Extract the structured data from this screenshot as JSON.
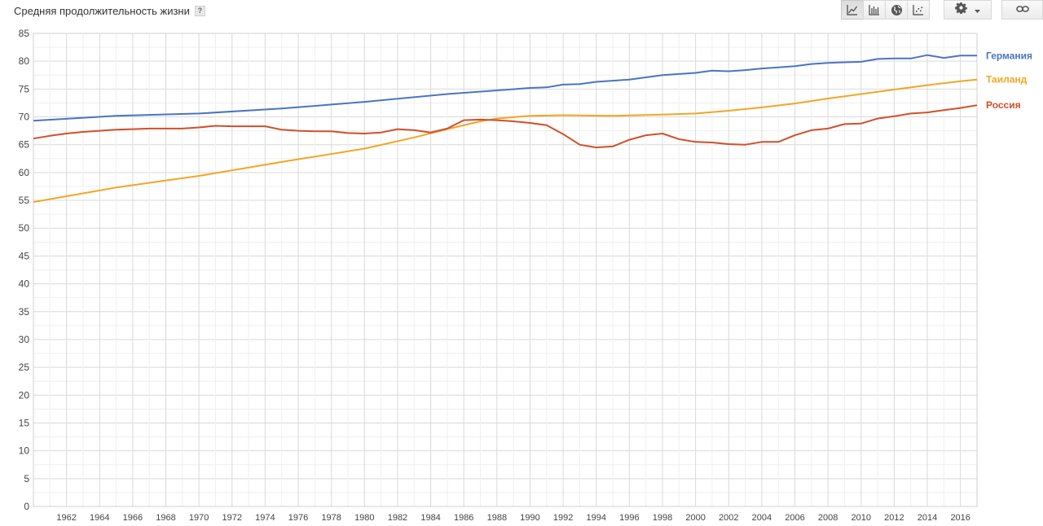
{
  "header": {
    "title": "Средняя продолжительность жизни",
    "help_label": "?"
  },
  "toolbar": {
    "buttons": [
      {
        "icon": "line-chart-icon",
        "active": true
      },
      {
        "icon": "bar-chart-icon",
        "active": false
      },
      {
        "icon": "globe-map-icon",
        "active": false
      },
      {
        "icon": "scatter-chart-icon",
        "active": false
      }
    ],
    "settings_icon": "gear-icon",
    "dropdown_icon": "caret-down-icon",
    "link_icon": "link-icon"
  },
  "chart_data": {
    "type": "line",
    "title": "Средняя продолжительность жизни",
    "xlabel": "",
    "ylabel": "",
    "xlim": [
      1960,
      2017
    ],
    "ylim": [
      0,
      85
    ],
    "y_ticks": [
      0,
      5,
      10,
      15,
      20,
      25,
      30,
      35,
      40,
      45,
      50,
      55,
      60,
      65,
      70,
      75,
      80,
      85
    ],
    "x_ticks": [
      1962,
      1964,
      1966,
      1968,
      1970,
      1972,
      1974,
      1976,
      1978,
      1980,
      1982,
      1984,
      1986,
      1988,
      1990,
      1992,
      1994,
      1996,
      1998,
      2000,
      2002,
      2004,
      2006,
      2008,
      2010,
      2012,
      2014,
      2016
    ],
    "grid": true,
    "legend_placement": "right, at line ends",
    "series": [
      {
        "name": "Германия",
        "color": "#4a74c4",
        "points": [
          [
            1960,
            69.3
          ],
          [
            1965,
            70.2
          ],
          [
            1970,
            70.6
          ],
          [
            1975,
            71.5
          ],
          [
            1980,
            72.7
          ],
          [
            1985,
            74.1
          ],
          [
            1990,
            75.2
          ],
          [
            1991,
            75.3
          ],
          [
            1992,
            75.8
          ],
          [
            1993,
            75.9
          ],
          [
            1994,
            76.3
          ],
          [
            1995,
            76.5
          ],
          [
            1996,
            76.7
          ],
          [
            1997,
            77.1
          ],
          [
            1998,
            77.5
          ],
          [
            1999,
            77.7
          ],
          [
            2000,
            77.9
          ],
          [
            2001,
            78.3
          ],
          [
            2002,
            78.2
          ],
          [
            2003,
            78.4
          ],
          [
            2004,
            78.7
          ],
          [
            2005,
            78.9
          ],
          [
            2006,
            79.1
          ],
          [
            2007,
            79.5
          ],
          [
            2008,
            79.7
          ],
          [
            2009,
            79.8
          ],
          [
            2010,
            79.9
          ],
          [
            2011,
            80.4
          ],
          [
            2012,
            80.5
          ],
          [
            2013,
            80.5
          ],
          [
            2014,
            81.1
          ],
          [
            2015,
            80.6
          ],
          [
            2016,
            81.0
          ],
          [
            2017,
            81.0
          ]
        ]
      },
      {
        "name": "Таиланд",
        "color": "#f2a623",
        "points": [
          [
            1960,
            54.7
          ],
          [
            1965,
            57.3
          ],
          [
            1970,
            59.4
          ],
          [
            1975,
            61.9
          ],
          [
            1980,
            64.3
          ],
          [
            1983,
            66.3
          ],
          [
            1985,
            67.8
          ],
          [
            1987,
            69.2
          ],
          [
            1988,
            69.7
          ],
          [
            1990,
            70.2
          ],
          [
            1992,
            70.3
          ],
          [
            1995,
            70.2
          ],
          [
            1998,
            70.4
          ],
          [
            2000,
            70.6
          ],
          [
            2002,
            71.1
          ],
          [
            2004,
            71.7
          ],
          [
            2006,
            72.4
          ],
          [
            2008,
            73.3
          ],
          [
            2010,
            74.1
          ],
          [
            2012,
            74.9
          ],
          [
            2014,
            75.7
          ],
          [
            2016,
            76.4
          ],
          [
            2017,
            76.7
          ]
        ]
      },
      {
        "name": "Россия",
        "color": "#d14f29",
        "points": [
          [
            1960,
            66.1
          ],
          [
            1961,
            66.6
          ],
          [
            1962,
            67.0
          ],
          [
            1963,
            67.3
          ],
          [
            1964,
            67.5
          ],
          [
            1965,
            67.7
          ],
          [
            1966,
            67.8
          ],
          [
            1967,
            67.9
          ],
          [
            1968,
            67.9
          ],
          [
            1969,
            67.9
          ],
          [
            1970,
            68.1
          ],
          [
            1971,
            68.4
          ],
          [
            1972,
            68.3
          ],
          [
            1973,
            68.3
          ],
          [
            1974,
            68.3
          ],
          [
            1975,
            67.7
          ],
          [
            1976,
            67.5
          ],
          [
            1977,
            67.4
          ],
          [
            1978,
            67.4
          ],
          [
            1979,
            67.1
          ],
          [
            1980,
            67.0
          ],
          [
            1981,
            67.2
          ],
          [
            1982,
            67.8
          ],
          [
            1983,
            67.6
          ],
          [
            1984,
            67.2
          ],
          [
            1985,
            67.9
          ],
          [
            1986,
            69.4
          ],
          [
            1987,
            69.5
          ],
          [
            1988,
            69.4
          ],
          [
            1989,
            69.2
          ],
          [
            1990,
            68.9
          ],
          [
            1991,
            68.5
          ],
          [
            1992,
            66.9
          ],
          [
            1993,
            65.0
          ],
          [
            1994,
            64.5
          ],
          [
            1995,
            64.7
          ],
          [
            1996,
            65.9
          ],
          [
            1997,
            66.7
          ],
          [
            1998,
            67.0
          ],
          [
            1999,
            66.0
          ],
          [
            2000,
            65.5
          ],
          [
            2001,
            65.4
          ],
          [
            2002,
            65.1
          ],
          [
            2003,
            65.0
          ],
          [
            2004,
            65.5
          ],
          [
            2005,
            65.5
          ],
          [
            2006,
            66.7
          ],
          [
            2007,
            67.6
          ],
          [
            2008,
            67.9
          ],
          [
            2009,
            68.7
          ],
          [
            2010,
            68.8
          ],
          [
            2011,
            69.7
          ],
          [
            2012,
            70.1
          ],
          [
            2013,
            70.6
          ],
          [
            2014,
            70.8
          ],
          [
            2015,
            71.2
          ],
          [
            2016,
            71.6
          ],
          [
            2017,
            72.1
          ]
        ]
      }
    ]
  }
}
